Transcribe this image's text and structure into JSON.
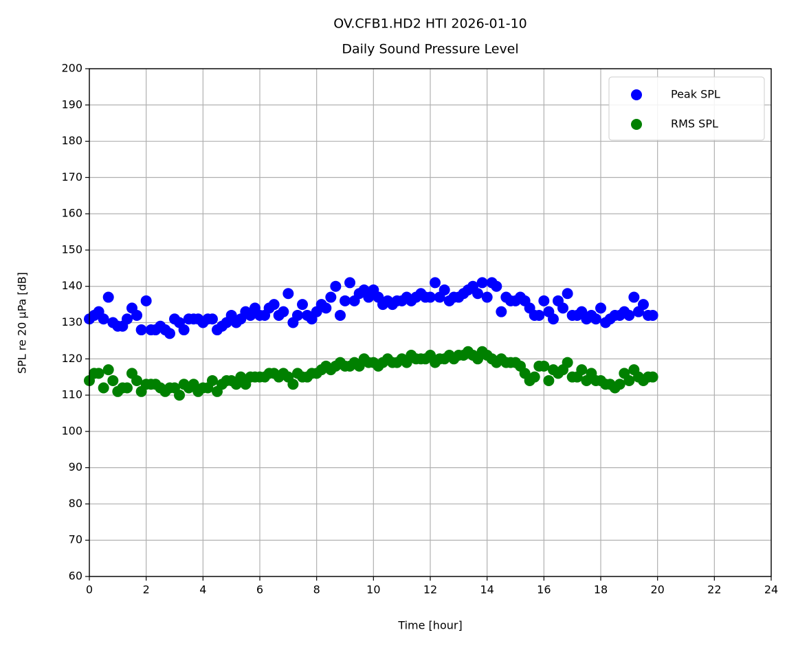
{
  "chart_data": {
    "type": "scatter",
    "title": "OV.CFB1.HD2 HTI 2026-01-10",
    "subtitle": "Daily Sound Pressure Level",
    "xlabel": "Time [hour]",
    "ylabel": "SPL re 20 μPa [dB]",
    "xlim": [
      0,
      24
    ],
    "xticks": [
      0,
      2,
      4,
      6,
      8,
      10,
      12,
      14,
      16,
      18,
      20,
      22,
      24
    ],
    "ylim": [
      60,
      200
    ],
    "yticks": [
      60,
      70,
      80,
      90,
      100,
      110,
      120,
      130,
      140,
      150,
      160,
      170,
      180,
      190,
      200
    ],
    "grid": true,
    "legend": "upper right",
    "x": [
      0,
      0.17,
      0.33,
      0.5,
      0.67,
      0.83,
      1,
      1.17,
      1.33,
      1.5,
      1.67,
      1.83,
      2,
      2.17,
      2.33,
      2.5,
      2.67,
      2.83,
      3,
      3.17,
      3.33,
      3.5,
      3.67,
      3.83,
      4,
      4.17,
      4.33,
      4.5,
      4.67,
      4.83,
      5,
      5.17,
      5.33,
      5.5,
      5.67,
      5.83,
      6,
      6.17,
      6.33,
      6.5,
      6.67,
      6.83,
      7,
      7.17,
      7.33,
      7.5,
      7.67,
      7.83,
      8,
      8.17,
      8.33,
      8.5,
      8.67,
      8.83,
      9,
      9.17,
      9.33,
      9.5,
      9.67,
      9.83,
      10,
      10.17,
      10.33,
      10.5,
      10.67,
      10.83,
      11,
      11.17,
      11.33,
      11.5,
      11.67,
      11.83,
      12,
      12.17,
      12.33,
      12.5,
      12.67,
      12.83,
      13,
      13.17,
      13.33,
      13.5,
      13.67,
      13.83,
      14,
      14.17,
      14.33,
      14.5,
      14.67,
      14.83,
      15,
      15.17,
      15.33,
      15.5,
      15.67,
      15.83,
      16,
      16.17,
      16.33,
      16.5,
      16.67,
      16.83,
      17,
      17.17,
      17.33,
      17.5,
      17.67,
      17.83,
      18,
      18.17,
      18.33,
      18.5,
      18.67,
      18.83,
      19,
      19.17,
      19.33,
      19.5,
      19.67,
      19.83
    ],
    "series": [
      {
        "name": "Peak SPL",
        "color": "#0000ff",
        "values": [
          131,
          132,
          133,
          131,
          137,
          130,
          129,
          129,
          131,
          134,
          132,
          128,
          136,
          128,
          128,
          129,
          128,
          127,
          131,
          130,
          128,
          131,
          131,
          131,
          130,
          131,
          131,
          128,
          129,
          130,
          132,
          130,
          131,
          133,
          132,
          134,
          132,
          132,
          134,
          135,
          132,
          133,
          138,
          130,
          132,
          135,
          132,
          131,
          133,
          135,
          134,
          137,
          140,
          132,
          136,
          141,
          136,
          138,
          139,
          137,
          139,
          137,
          135,
          136,
          135,
          136,
          136,
          137,
          136,
          137,
          138,
          137,
          137,
          141,
          137,
          139,
          136,
          137,
          137,
          138,
          139,
          140,
          138,
          141,
          137,
          141,
          140,
          133,
          137,
          136,
          136,
          137,
          136,
          134,
          132,
          132,
          136,
          133,
          131,
          136,
          134,
          138,
          132,
          132,
          133,
          131,
          132,
          131,
          134,
          130,
          131,
          132,
          132,
          133,
          132,
          137,
          133,
          135,
          132,
          132
        ]
      },
      {
        "name": "RMS SPL",
        "color": "#008000",
        "values": [
          114,
          116,
          116,
          112,
          117,
          114,
          111,
          112,
          112,
          116,
          114,
          111,
          113,
          113,
          113,
          112,
          111,
          112,
          112,
          110,
          113,
          112,
          113,
          111,
          112,
          112,
          114,
          111,
          113,
          114,
          114,
          113,
          115,
          113,
          115,
          115,
          115,
          115,
          116,
          116,
          115,
          116,
          115,
          113,
          116,
          115,
          115,
          116,
          116,
          117,
          118,
          117,
          118,
          119,
          118,
          118,
          119,
          118,
          120,
          119,
          119,
          118,
          119,
          120,
          119,
          119,
          120,
          119,
          121,
          120,
          120,
          120,
          121,
          119,
          120,
          120,
          121,
          120,
          121,
          121,
          122,
          121,
          120,
          122,
          121,
          120,
          119,
          120,
          119,
          119,
          119,
          118,
          116,
          114,
          115,
          118,
          118,
          114,
          117,
          116,
          117,
          119,
          115,
          115,
          117,
          114,
          116,
          114,
          114,
          113,
          113,
          112,
          113,
          116,
          114,
          117,
          115,
          114,
          115,
          115
        ]
      }
    ]
  }
}
